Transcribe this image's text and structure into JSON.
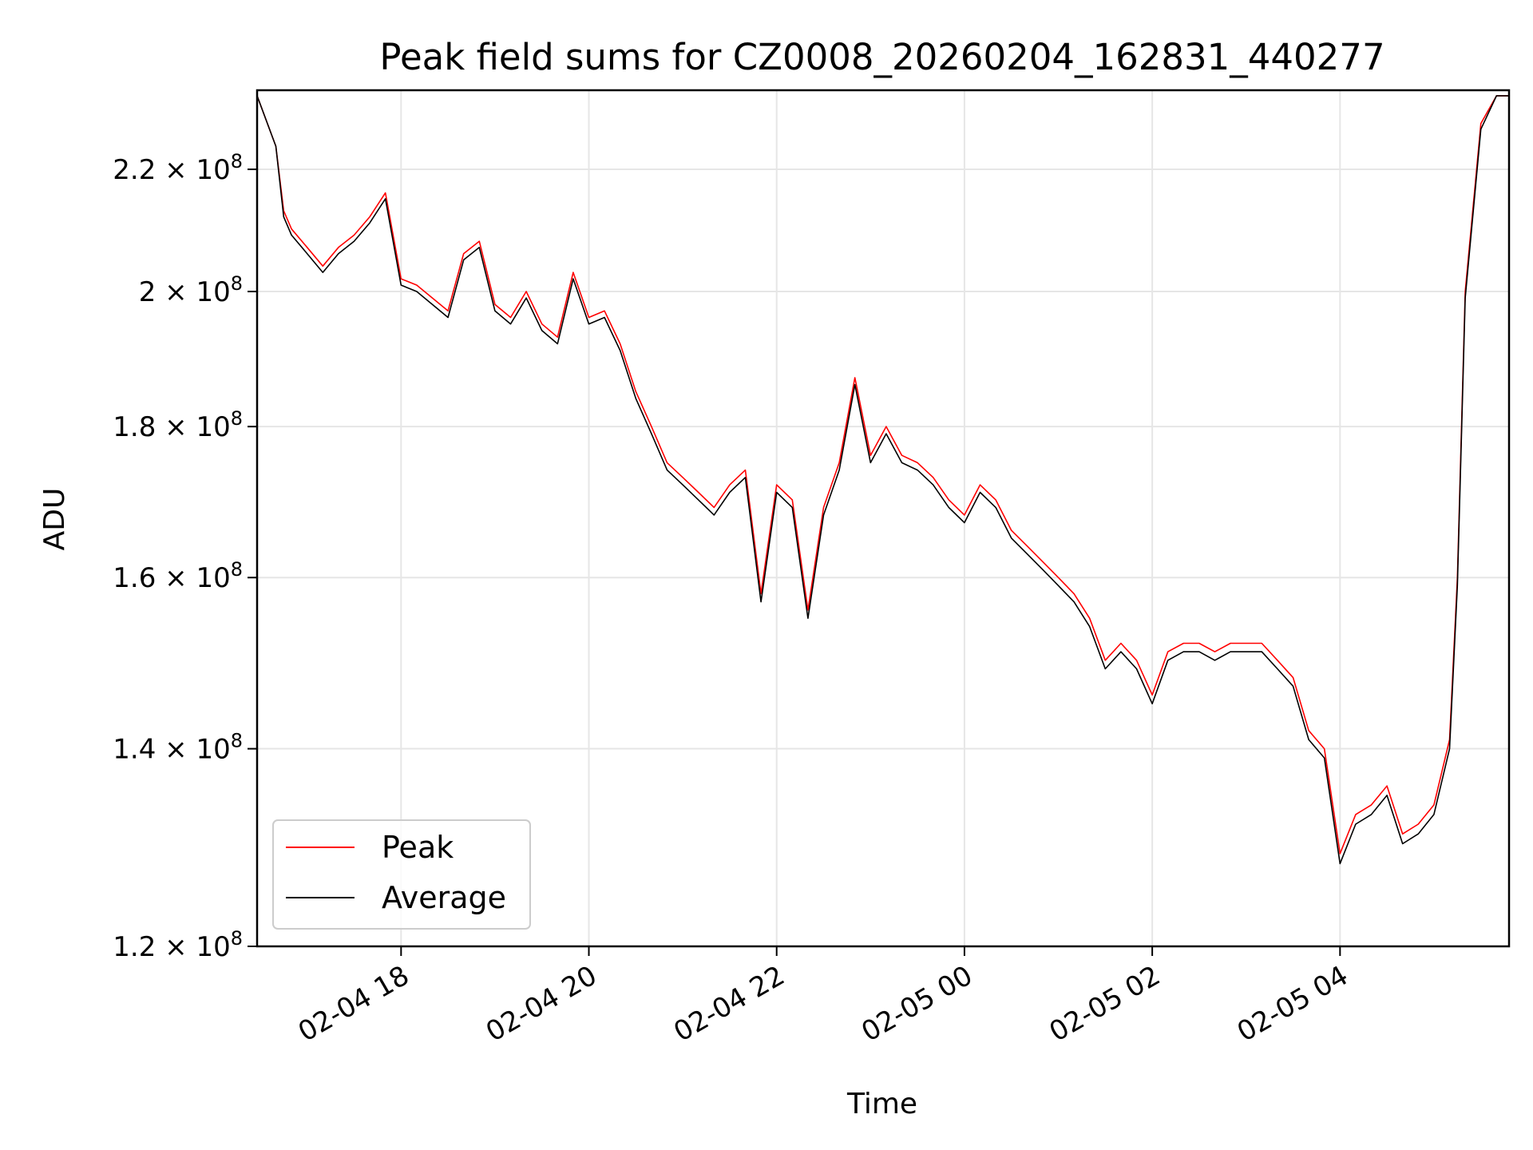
{
  "chart_data": {
    "type": "line",
    "title": "Peak field sums for CZ0008_20260204_162831_440277",
    "xlabel": "Time",
    "ylabel": "ADU",
    "y_scale": "log",
    "grid": true,
    "legend_position": "lower-left",
    "xlim": [
      "2026-02-04 16:28",
      "2026-02-05 05:48"
    ],
    "ylim": [
      120000000,
      234000000
    ],
    "x_ticks": [
      {
        "value": "2026-02-04 18:00",
        "label": "02-04 18"
      },
      {
        "value": "2026-02-04 20:00",
        "label": "02-04 20"
      },
      {
        "value": "2026-02-04 22:00",
        "label": "02-04 22"
      },
      {
        "value": "2026-02-05 00:00",
        "label": "02-05 00"
      },
      {
        "value": "2026-02-05 02:00",
        "label": "02-05 02"
      },
      {
        "value": "2026-02-05 04:00",
        "label": "02-05 04"
      }
    ],
    "y_ticks": [
      {
        "value": 120000000,
        "mantissa": "1.2 × 10",
        "exp": "8"
      },
      {
        "value": 140000000,
        "mantissa": "1.4 × 10",
        "exp": "8"
      },
      {
        "value": 160000000,
        "mantissa": "1.6 × 10",
        "exp": "8"
      },
      {
        "value": 180000000,
        "mantissa": "1.8 × 10",
        "exp": "8"
      },
      {
        "value": 200000000,
        "mantissa": "2 × 10",
        "exp": "8"
      },
      {
        "value": 220000000,
        "mantissa": "2.2 × 10",
        "exp": "8"
      }
    ],
    "x": [
      "2026-02-04 16:28",
      "2026-02-04 16:40",
      "2026-02-04 16:45",
      "2026-02-04 16:50",
      "2026-02-04 17:00",
      "2026-02-04 17:10",
      "2026-02-04 17:20",
      "2026-02-04 17:30",
      "2026-02-04 17:40",
      "2026-02-04 17:50",
      "2026-02-04 18:00",
      "2026-02-04 18:10",
      "2026-02-04 18:20",
      "2026-02-04 18:30",
      "2026-02-04 18:40",
      "2026-02-04 18:50",
      "2026-02-04 19:00",
      "2026-02-04 19:10",
      "2026-02-04 19:20",
      "2026-02-04 19:30",
      "2026-02-04 19:40",
      "2026-02-04 19:50",
      "2026-02-04 20:00",
      "2026-02-04 20:10",
      "2026-02-04 20:20",
      "2026-02-04 20:30",
      "2026-02-04 20:40",
      "2026-02-04 20:50",
      "2026-02-04 21:00",
      "2026-02-04 21:10",
      "2026-02-04 21:20",
      "2026-02-04 21:30",
      "2026-02-04 21:40",
      "2026-02-04 21:50",
      "2026-02-04 22:00",
      "2026-02-04 22:10",
      "2026-02-04 22:20",
      "2026-02-04 22:30",
      "2026-02-04 22:40",
      "2026-02-04 22:50",
      "2026-02-04 23:00",
      "2026-02-04 23:10",
      "2026-02-04 23:20",
      "2026-02-04 23:30",
      "2026-02-04 23:40",
      "2026-02-04 23:50",
      "2026-02-05 00:00",
      "2026-02-05 00:10",
      "2026-02-05 00:20",
      "2026-02-05 00:30",
      "2026-02-05 00:40",
      "2026-02-05 00:50",
      "2026-02-05 01:00",
      "2026-02-05 01:10",
      "2026-02-05 01:20",
      "2026-02-05 01:30",
      "2026-02-05 01:40",
      "2026-02-05 01:50",
      "2026-02-05 02:00",
      "2026-02-05 02:10",
      "2026-02-05 02:20",
      "2026-02-05 02:30",
      "2026-02-05 02:40",
      "2026-02-05 02:50",
      "2026-02-05 03:00",
      "2026-02-05 03:10",
      "2026-02-05 03:20",
      "2026-02-05 03:30",
      "2026-02-05 03:40",
      "2026-02-05 03:50",
      "2026-02-05 04:00",
      "2026-02-05 04:10",
      "2026-02-05 04:20",
      "2026-02-05 04:30",
      "2026-02-05 04:40",
      "2026-02-05 04:50",
      "2026-02-05 05:00",
      "2026-02-05 05:10",
      "2026-02-05 05:15",
      "2026-02-05 05:20",
      "2026-02-05 05:30",
      "2026-02-05 05:40",
      "2026-02-05 05:48"
    ],
    "series": [
      {
        "name": "Peak",
        "color": "#ff0000",
        "values": [
          233000000,
          224000000,
          213000000,
          210000000,
          207000000,
          204000000,
          207000000,
          209000000,
          212000000,
          216000000,
          202000000,
          201000000,
          199000000,
          197000000,
          206000000,
          208000000,
          198000000,
          196000000,
          200000000,
          195000000,
          193000000,
          203000000,
          196000000,
          197000000,
          192000000,
          185000000,
          180000000,
          175000000,
          173000000,
          171000000,
          169000000,
          172000000,
          174000000,
          158000000,
          172000000,
          170000000,
          156000000,
          169000000,
          175000000,
          187000000,
          176000000,
          180000000,
          176000000,
          175000000,
          173000000,
          170000000,
          168000000,
          172000000,
          170000000,
          166000000,
          164000000,
          162000000,
          160000000,
          158000000,
          155000000,
          150000000,
          152000000,
          150000000,
          146000000,
          151000000,
          152000000,
          152000000,
          151000000,
          152000000,
          152000000,
          152000000,
          150000000,
          148000000,
          142000000,
          140000000,
          129000000,
          133000000,
          134000000,
          136000000,
          131000000,
          132000000,
          134000000,
          141000000,
          160000000,
          200000000,
          228000000,
          233000000,
          233000000
        ]
      },
      {
        "name": "Average",
        "color": "#000000",
        "values": [
          233000000,
          224000000,
          212000000,
          209000000,
          206000000,
          203000000,
          206000000,
          208000000,
          211000000,
          215000000,
          201000000,
          200000000,
          198000000,
          196000000,
          205000000,
          207000000,
          197000000,
          195000000,
          199000000,
          194000000,
          192000000,
          202000000,
          195000000,
          196000000,
          191000000,
          184000000,
          179000000,
          174000000,
          172000000,
          170000000,
          168000000,
          171000000,
          173000000,
          157000000,
          171000000,
          169000000,
          155000000,
          168000000,
          174000000,
          186000000,
          175000000,
          179000000,
          175000000,
          174000000,
          172000000,
          169000000,
          167000000,
          171000000,
          169000000,
          165000000,
          163000000,
          161000000,
          159000000,
          157000000,
          154000000,
          149000000,
          151000000,
          149000000,
          145000000,
          150000000,
          151000000,
          151000000,
          150000000,
          151000000,
          151000000,
          151000000,
          149000000,
          147000000,
          141000000,
          139000000,
          128000000,
          132000000,
          133000000,
          135000000,
          130000000,
          131000000,
          133000000,
          140000000,
          159000000,
          199000000,
          227000000,
          233000000,
          233000000
        ]
      }
    ]
  }
}
